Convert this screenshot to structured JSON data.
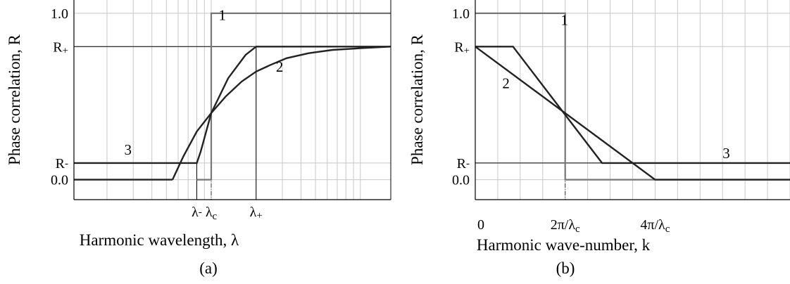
{
  "chart_data": [
    {
      "type": "line",
      "panel_caption": "(a)",
      "xlabel": "Harmonic wavelength, λ",
      "ylabel": "Phase correlation, R",
      "x_scale": "log",
      "y_ticks": [
        "1.0",
        "R+",
        "R-",
        "0.0"
      ],
      "y_tick_values": [
        1.0,
        0.8,
        0.1,
        0.0
      ],
      "x_tick_labels": [
        "λ-",
        "λc",
        "λ+"
      ],
      "x_tick_values": [
        0.8,
        1.0,
        2.0
      ],
      "xlim": [
        0.12,
        16
      ],
      "ylim": [
        -0.12,
        1.08
      ],
      "series": [
        {
          "name": "1",
          "points": [
            [
              0.8,
              0.0
            ],
            [
              1.0,
              0.0
            ],
            [
              1.0,
              1.0
            ],
            [
              16,
              1.0
            ]
          ]
        },
        {
          "name": "2",
          "points": [
            [
              0.55,
              0.0
            ],
            [
              0.65,
              0.14
            ],
            [
              0.8,
              0.29
            ],
            [
              1.0,
              0.4
            ],
            [
              1.25,
              0.5
            ],
            [
              1.6,
              0.59
            ],
            [
              2.0,
              0.65
            ],
            [
              2.5,
              0.69
            ],
            [
              3.2,
              0.73
            ],
            [
              4.5,
              0.76
            ],
            [
              6.5,
              0.78
            ],
            [
              10,
              0.79
            ],
            [
              16,
              0.8
            ]
          ]
        },
        {
          "name": "3",
          "points": [
            [
              0.12,
              0.1
            ],
            [
              0.8,
              0.1
            ],
            [
              0.85,
              0.17
            ],
            [
              1.0,
              0.4
            ],
            [
              1.3,
              0.61
            ],
            [
              1.7,
              0.75
            ],
            [
              2.0,
              0.8
            ],
            [
              16,
              0.8
            ]
          ]
        },
        {
          "name": "",
          "points": [
            [
              0.12,
              0.0
            ],
            [
              0.55,
              0.0
            ]
          ]
        }
      ],
      "curve_labels": [
        "1",
        "2",
        "3"
      ]
    },
    {
      "type": "line",
      "panel_caption": "(b)",
      "xlabel": "Harmonic wave-number, k",
      "ylabel": "Phase correlation, R",
      "x_scale": "linear",
      "y_ticks": [
        "1.0",
        "R+",
        "R-",
        "0.0"
      ],
      "y_tick_values": [
        1.0,
        0.8,
        0.1,
        0.0
      ],
      "x_tick_labels": [
        "0",
        "2π/λc",
        "4π/λc"
      ],
      "x_tick_values": [
        0,
        1,
        2
      ],
      "xlim": [
        0,
        3.5
      ],
      "ylim": [
        -0.12,
        1.08
      ],
      "series": [
        {
          "name": "1",
          "points": [
            [
              0,
              1.0
            ],
            [
              1,
              1.0
            ],
            [
              1,
              0.0
            ],
            [
              3.5,
              0.0
            ]
          ]
        },
        {
          "name": "2",
          "points": [
            [
              0,
              0.8
            ],
            [
              2,
              0.0
            ],
            [
              3.5,
              0.0
            ]
          ]
        },
        {
          "name": "3",
          "points": [
            [
              0,
              0.8
            ],
            [
              0.42,
              0.8
            ],
            [
              1.41,
              0.1
            ],
            [
              3.5,
              0.1
            ]
          ]
        }
      ],
      "curve_labels": [
        "1",
        "2",
        "3"
      ]
    }
  ]
}
